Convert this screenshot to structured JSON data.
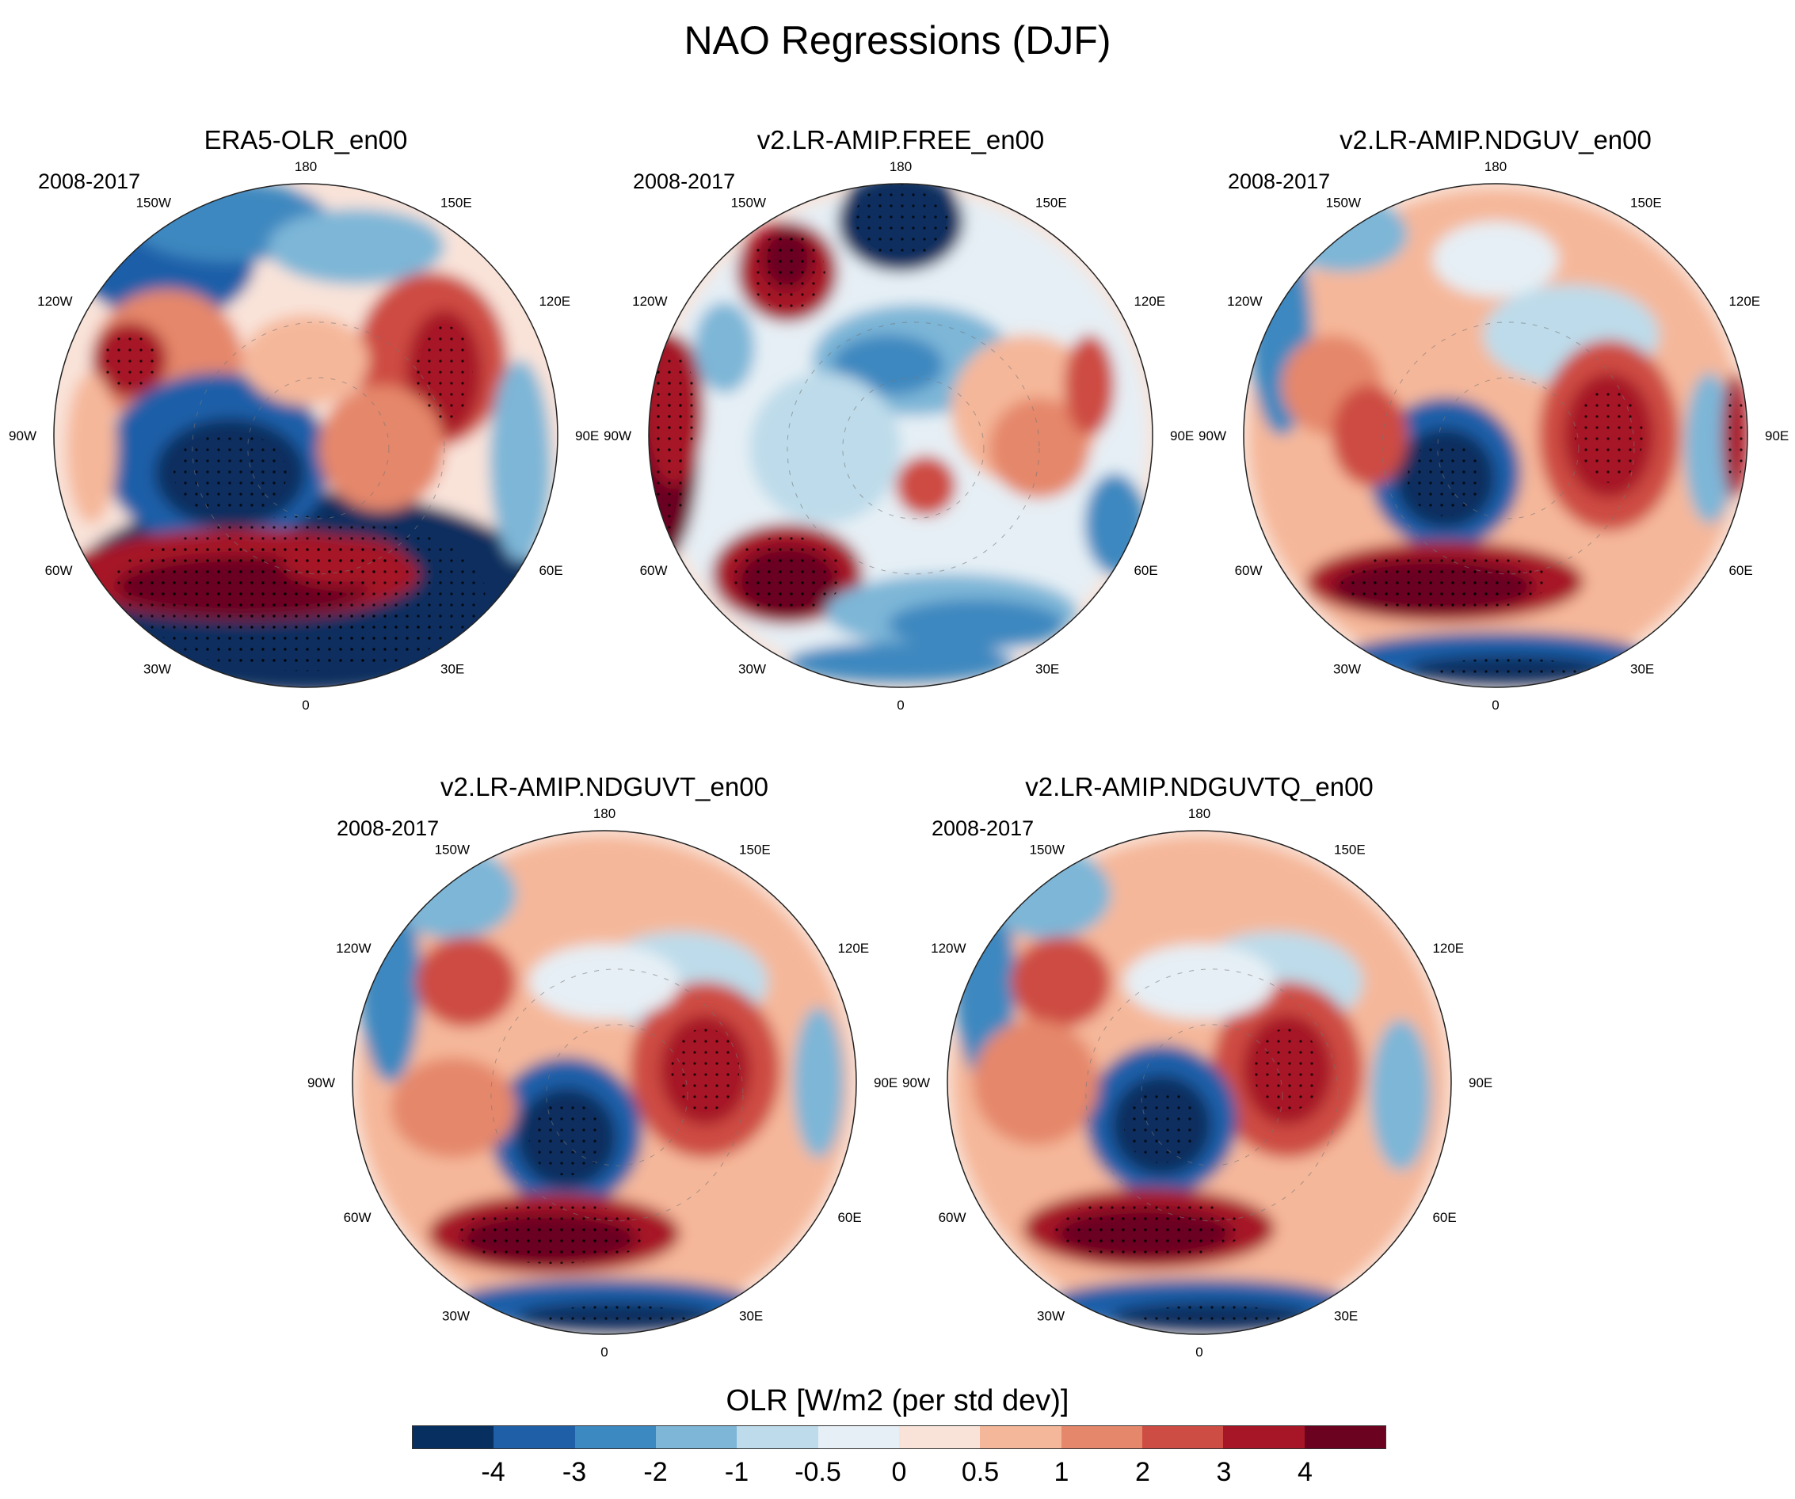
{
  "figure": {
    "title": "NAO Regressions (DJF)",
    "colorbar_label": "OLR [W/m2 (per std dev)]",
    "colorbar_colors": [
      "#072f5f",
      "#1f5fa8",
      "#3c88c0",
      "#7db6d7",
      "#bddbea",
      "#e6eff5",
      "#f9e3d9",
      "#f5b79a",
      "#e5876a",
      "#cd4c43",
      "#a61626",
      "#6a0220"
    ],
    "colorbar_ticks": [
      "-4",
      "-3",
      "-2",
      "-1",
      "-0.5",
      "0",
      "0.5",
      "1",
      "2",
      "3",
      "4"
    ]
  },
  "panels": [
    {
      "title": "ERA5-OLR_en00",
      "period": "2008-2017"
    },
    {
      "title": "v2.LR-AMIP.FREE_en00",
      "period": "2008-2017"
    },
    {
      "title": "v2.LR-AMIP.NDGUV_en00",
      "period": "2008-2017"
    },
    {
      "title": "v2.LR-AMIP.NDGUVT_en00",
      "period": "2008-2017"
    },
    {
      "title": "v2.LR-AMIP.NDGUVTQ_en00",
      "period": "2008-2017"
    }
  ],
  "lon_labels": [
    "180",
    "150E",
    "120E",
    "90E",
    "60E",
    "30E",
    "0",
    "30W",
    "60W",
    "90W",
    "120W",
    "150W"
  ]
}
